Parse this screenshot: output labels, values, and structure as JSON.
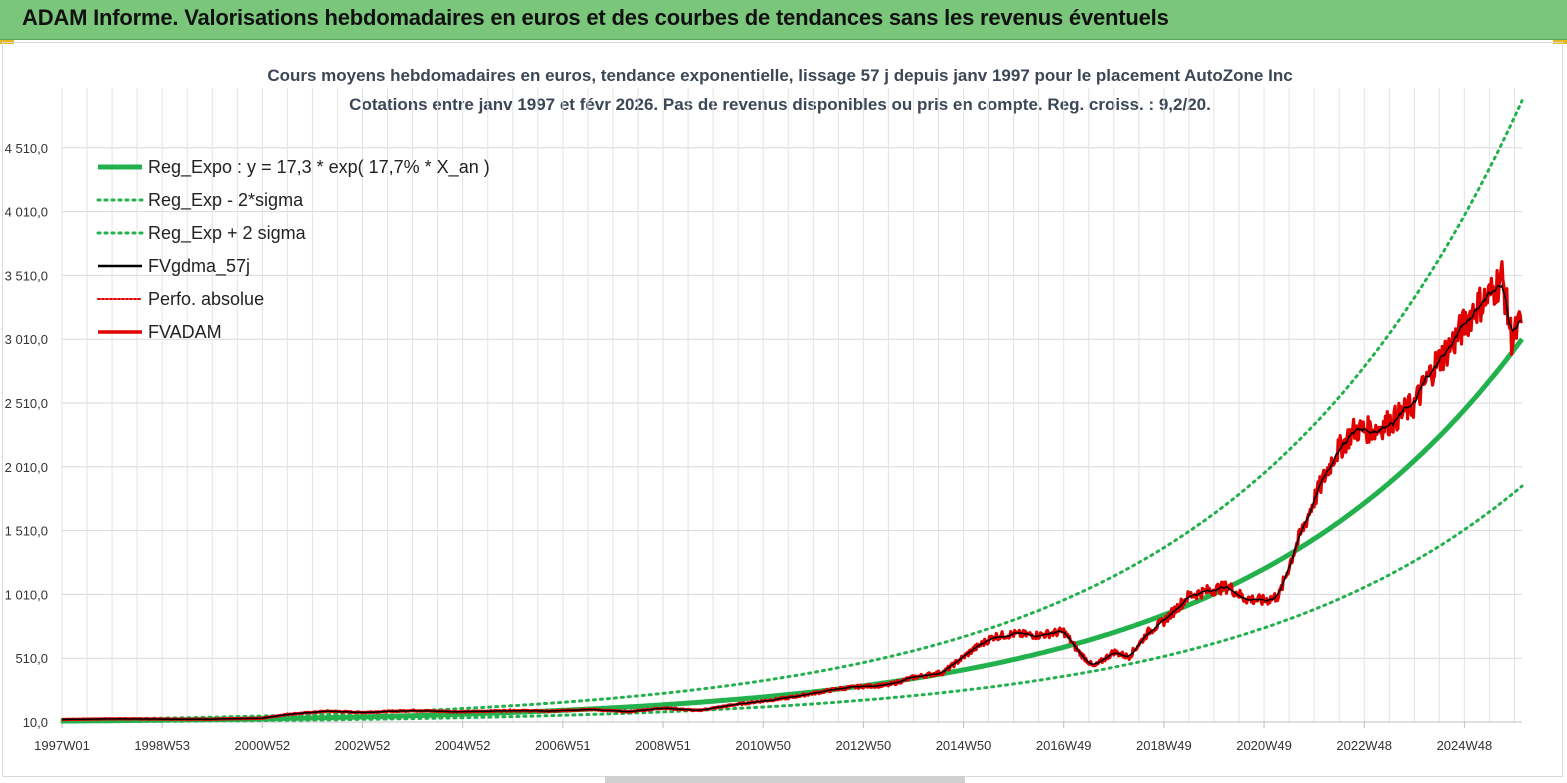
{
  "banner": {
    "title": "ADAM Informe. Valorisations hebdomadaires en euros et des courbes de tendances sans les revenus éventuels"
  },
  "chart_data": {
    "type": "line",
    "title": "Cours moyens hebdomadaires en euros, tendance exponentielle, lissage 57 j depuis janv 1997 pour le placement AutoZone Inc",
    "subtitle": "Cotations entre janv 1997 et févr 2026. Pas de revenus disponibles ou pris en compte. Reg. croiss. : 9,2/20.",
    "xlabel": "",
    "ylabel": "",
    "ylim": [
      10,
      5010
    ],
    "xlim": [
      1997.0,
      2026.15
    ],
    "grid": true,
    "legend_position": "top-left",
    "y_ticks": [
      "10,0",
      "510,0",
      "1 010,0",
      "1 510,0",
      "2 010,0",
      "2 510,0",
      "3 010,0",
      "3 510,0",
      "4 010,0",
      "4 510,0"
    ],
    "y_tick_values": [
      10,
      510,
      1010,
      1510,
      2010,
      2510,
      3010,
      3510,
      4010,
      4510
    ],
    "x_ticks": [
      "1997W01",
      "1998W53",
      "2000W52",
      "2002W52",
      "2004W52",
      "2006W51",
      "2008W51",
      "2010W50",
      "2012W50",
      "2014W50",
      "2016W49",
      "2018W49",
      "2020W49",
      "2022W48",
      "2024W48"
    ],
    "x_tick_values": [
      1997.0,
      1999.0,
      2001.0,
      2003.0,
      2005.0,
      2007.0,
      2009.0,
      2011.0,
      2013.0,
      2015.0,
      2017.0,
      2019.0,
      2021.0,
      2023.0,
      2025.0
    ],
    "trend": {
      "a": 17.3,
      "rate": 0.177,
      "sigma_factor": 1.62
    },
    "series": [
      {
        "name": "Reg_Expo : y = 17,3 * exp( 17,7% *  X_an )",
        "color": "#22b14c",
        "style": "solid-thick",
        "kind": "trend"
      },
      {
        "name": "Reg_Exp - 2*sigma",
        "color": "#22b14c",
        "style": "dotted",
        "kind": "trend_low"
      },
      {
        "name": "Reg_Exp + 2 sigma",
        "color": "#22b14c",
        "style": "dotted",
        "kind": "trend_high"
      },
      {
        "name": "FVgdma_57j",
        "color": "#000000",
        "style": "solid",
        "kind": "smoothed"
      },
      {
        "name": "Perfo. absolue",
        "color": "#e00000",
        "style": "dotted",
        "kind": "none"
      },
      {
        "name": "FVADAM",
        "color": "#e00000",
        "style": "solid-thick",
        "kind": "price"
      }
    ],
    "price_points": [
      [
        1997.0,
        30
      ],
      [
        1998.0,
        35
      ],
      [
        1999.0,
        33
      ],
      [
        2000.0,
        32
      ],
      [
        2001.0,
        40
      ],
      [
        2001.5,
        70
      ],
      [
        2002.3,
        95
      ],
      [
        2003.0,
        85
      ],
      [
        2004.0,
        100
      ],
      [
        2005.0,
        90
      ],
      [
        2006.0,
        100
      ],
      [
        2006.8,
        95
      ],
      [
        2007.5,
        110
      ],
      [
        2008.3,
        90
      ],
      [
        2009.0,
        120
      ],
      [
        2009.7,
        100
      ],
      [
        2010.5,
        150
      ],
      [
        2011.5,
        200
      ],
      [
        2012.5,
        270
      ],
      [
        2013.0,
        290
      ],
      [
        2013.5,
        300
      ],
      [
        2014.0,
        360
      ],
      [
        2014.6,
        400
      ],
      [
        2015.2,
        580
      ],
      [
        2015.6,
        680
      ],
      [
        2016.0,
        700
      ],
      [
        2016.5,
        690
      ],
      [
        2017.0,
        720
      ],
      [
        2017.3,
        560
      ],
      [
        2017.6,
        440
      ],
      [
        2018.0,
        560
      ],
      [
        2018.3,
        520
      ],
      [
        2018.7,
        720
      ],
      [
        2019.0,
        800
      ],
      [
        2019.5,
        1000
      ],
      [
        2020.0,
        1050
      ],
      [
        2020.3,
        1070
      ],
      [
        2020.6,
        980
      ],
      [
        2021.0,
        960
      ],
      [
        2021.3,
        1000
      ],
      [
        2021.6,
        1350
      ],
      [
        2022.0,
        1750
      ],
      [
        2022.4,
        2100
      ],
      [
        2022.8,
        2300
      ],
      [
        2023.2,
        2300
      ],
      [
        2023.6,
        2380
      ],
      [
        2024.0,
        2500
      ],
      [
        2024.4,
        2800
      ],
      [
        2024.8,
        3000
      ],
      [
        2025.2,
        3250
      ],
      [
        2025.5,
        3350
      ],
      [
        2025.75,
        3500
      ],
      [
        2025.95,
        3000
      ],
      [
        2026.15,
        3160
      ]
    ]
  }
}
